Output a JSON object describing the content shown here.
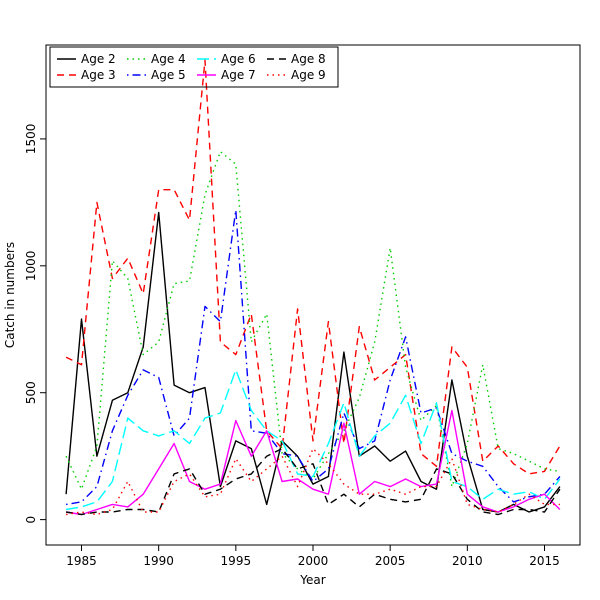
{
  "chart_data": {
    "type": "line",
    "title": "",
    "xlabel": "Year",
    "ylabel": "Catch in numbers",
    "grid": false,
    "legend_position": "top-left",
    "legend_ncol": 4,
    "xlim": [
      1982.7,
      2017.3
    ],
    "ylim": [
      -100,
      1870
    ],
    "xticks": [
      1985,
      1990,
      1995,
      2000,
      2005,
      2010,
      2015
    ],
    "yticks": [
      0,
      500,
      1000,
      1500
    ],
    "x": [
      1984,
      1985,
      1986,
      1987,
      1988,
      1989,
      1990,
      1991,
      1992,
      1993,
      1994,
      1995,
      1996,
      1997,
      1998,
      1999,
      2000,
      2001,
      2002,
      2003,
      2004,
      2005,
      2006,
      2007,
      2008,
      2009,
      2010,
      2011,
      2012,
      2013,
      2014,
      2015,
      2016
    ],
    "series": [
      {
        "name": "Age 2",
        "color": "#000000",
        "linetype": "solid",
        "values": [
          100,
          790,
          250,
          470,
          500,
          680,
          1210,
          530,
          500,
          520,
          130,
          310,
          280,
          60,
          310,
          250,
          140,
          170,
          660,
          250,
          290,
          230,
          270,
          150,
          120,
          550,
          250,
          40,
          30,
          60,
          30,
          50,
          130
        ]
      },
      {
        "name": "Age 3",
        "color": "#ff0000",
        "linetype": "dashed",
        "values": [
          640,
          610,
          1250,
          950,
          1030,
          890,
          1300,
          1300,
          1180,
          1810,
          700,
          650,
          810,
          350,
          280,
          830,
          310,
          780,
          300,
          760,
          550,
          600,
          650,
          260,
          210,
          680,
          600,
          230,
          290,
          220,
          180,
          190,
          290
        ]
      },
      {
        "name": "Age 4",
        "color": "#00cd00",
        "linetype": "dotted",
        "values": [
          250,
          120,
          290,
          1020,
          950,
          650,
          700,
          930,
          940,
          1280,
          1450,
          1400,
          700,
          810,
          260,
          200,
          160,
          260,
          350,
          480,
          700,
          1070,
          600,
          390,
          450,
          130,
          300,
          610,
          280,
          260,
          230,
          200,
          190
        ]
      },
      {
        "name": "Age 5",
        "color": "#0000ff",
        "linetype": "dotdash",
        "values": [
          60,
          70,
          130,
          350,
          490,
          590,
          560,
          330,
          400,
          840,
          780,
          1220,
          350,
          340,
          260,
          250,
          150,
          200,
          420,
          280,
          310,
          550,
          720,
          420,
          440,
          260,
          230,
          210,
          130,
          70,
          90,
          100,
          170
        ]
      },
      {
        "name": "Age 6",
        "color": "#00ffff",
        "linetype": "longdash",
        "values": [
          40,
          50,
          70,
          150,
          400,
          350,
          330,
          350,
          300,
          400,
          420,
          590,
          430,
          350,
          310,
          180,
          170,
          300,
          460,
          250,
          330,
          380,
          490,
          300,
          460,
          150,
          130,
          80,
          120,
          100,
          110,
          80,
          160
        ]
      },
      {
        "name": "Age 7",
        "color": "#ff00ff",
        "linetype": "solid",
        "values": [
          30,
          20,
          40,
          60,
          50,
          100,
          200,
          300,
          150,
          120,
          140,
          390,
          250,
          350,
          150,
          160,
          120,
          100,
          380,
          100,
          150,
          130,
          160,
          130,
          140,
          430,
          100,
          50,
          30,
          50,
          80,
          100,
          40
        ]
      },
      {
        "name": "Age 8",
        "color": "#000000",
        "linetype": "dashed",
        "values": [
          30,
          20,
          30,
          30,
          40,
          40,
          30,
          180,
          200,
          100,
          120,
          160,
          180,
          250,
          280,
          200,
          220,
          60,
          100,
          50,
          100,
          80,
          70,
          80,
          200,
          180,
          80,
          30,
          20,
          40,
          40,
          30,
          120
        ]
      },
      {
        "name": "Age 9",
        "color": "#ff0000",
        "linetype": "dotted",
        "values": [
          20,
          30,
          20,
          40,
          150,
          30,
          30,
          150,
          180,
          90,
          100,
          240,
          150,
          200,
          250,
          130,
          280,
          220,
          140,
          100,
          100,
          120,
          100,
          130,
          130,
          240,
          60,
          40,
          30,
          60,
          100,
          60,
          60
        ]
      }
    ]
  }
}
